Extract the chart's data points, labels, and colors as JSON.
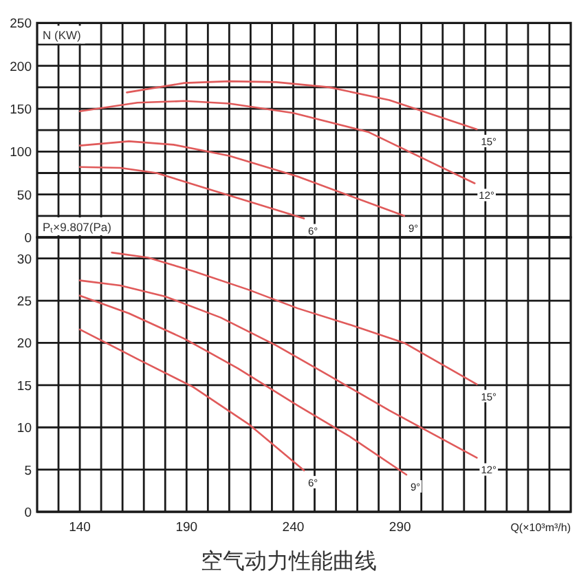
{
  "chart_data": [
    {
      "type": "line",
      "ylabel": "N (KW)",
      "xlim": [
        120,
        370
      ],
      "ylim": [
        0,
        250
      ],
      "xticks": [
        130,
        140,
        150,
        160,
        170,
        180,
        190,
        200,
        210,
        220,
        230,
        240,
        250,
        260,
        270,
        280,
        290,
        300,
        310,
        320,
        330,
        340,
        350,
        360
      ],
      "yticks": [
        0,
        {
          "value": 25,
          "label": null
        },
        50,
        {
          "value": 75,
          "label": null
        },
        100,
        {
          "value": 125,
          "label": null
        },
        150,
        {
          "value": 175,
          "label": null
        },
        200,
        {
          "value": 225,
          "label": null
        },
        250
      ],
      "grid": true,
      "tick_labels": "y",
      "series": [
        {
          "name": "15°",
          "color": "#e05a5a",
          "x": [
            162,
            189,
            210,
            232,
            257,
            285,
            326
          ],
          "values": [
            169,
            180,
            182,
            181,
            175,
            160,
            126
          ]
        },
        {
          "name": "12°",
          "color": "#e05a5a",
          "x": [
            140,
            167,
            189,
            210,
            240,
            275,
            325
          ],
          "values": [
            147,
            157,
            159,
            156,
            145,
            123,
            63
          ]
        },
        {
          "name": "9°",
          "color": "#e05a5a",
          "x": [
            140,
            163,
            184,
            210,
            242,
            292
          ],
          "values": [
            107,
            112,
            108,
            95,
            71,
            25
          ]
        },
        {
          "name": "6°",
          "color": "#e05a5a",
          "x": [
            140,
            159,
            176,
            202,
            223,
            245
          ],
          "values": [
            82,
            81,
            75,
            55,
            39,
            22
          ]
        }
      ]
    },
    {
      "type": "line",
      "title": "空气动力性能曲线",
      "ylabel": "Pₜ×9.807(Pa)",
      "xlabel": "Q(×10³m³/h)",
      "xlim": [
        120,
        370
      ],
      "ylim": [
        0,
        32.5
      ],
      "xticks": [
        {
          "value": 130,
          "label": null
        },
        140,
        {
          "value": 150,
          "label": null
        },
        {
          "value": 160,
          "label": null
        },
        {
          "value": 170,
          "label": null
        },
        {
          "value": 180,
          "label": null
        },
        190,
        {
          "value": 200,
          "label": null
        },
        {
          "value": 210,
          "label": null
        },
        {
          "value": 220,
          "label": null
        },
        {
          "value": 230,
          "label": null
        },
        240,
        {
          "value": 250,
          "label": null
        },
        {
          "value": 260,
          "label": null
        },
        {
          "value": 270,
          "label": null
        },
        {
          "value": 280,
          "label": null
        },
        290,
        {
          "value": 300,
          "label": null
        },
        {
          "value": 310,
          "label": null
        },
        {
          "value": 320,
          "label": null
        },
        {
          "value": 330,
          "label": null
        },
        {
          "value": 340,
          "label": null
        },
        {
          "value": 350,
          "label": null
        },
        {
          "value": 360,
          "label": null
        }
      ],
      "yticks": [
        0,
        5,
        10,
        15,
        20,
        25,
        30
      ],
      "grid": true,
      "series": [
        {
          "name": "15°",
          "color": "#e05a5a",
          "x": [
            155,
            172,
            193,
            219,
            242,
            266,
            292,
            326
          ],
          "values": [
            30.7,
            30.1,
            28.5,
            26.3,
            24.1,
            22.2,
            20.0,
            15.1
          ]
        },
        {
          "name": "12°",
          "color": "#e05a5a",
          "x": [
            140,
            159,
            180,
            206,
            232,
            257,
            285,
            326
          ],
          "values": [
            27.4,
            26.8,
            25.5,
            23.0,
            19.7,
            16.1,
            12.0,
            6.4
          ]
        },
        {
          "name": "9°",
          "color": "#e05a5a",
          "x": [
            140,
            163,
            189,
            214,
            242,
            266,
            293
          ],
          "values": [
            25.6,
            23.5,
            20.5,
            17.0,
            12.6,
            9.0,
            4.4
          ]
        },
        {
          "name": "6°",
          "color": "#e05a5a",
          "x": [
            140,
            167,
            193,
            219,
            245
          ],
          "values": [
            21.6,
            18.1,
            14.8,
            10.4,
            4.9
          ]
        }
      ]
    }
  ]
}
